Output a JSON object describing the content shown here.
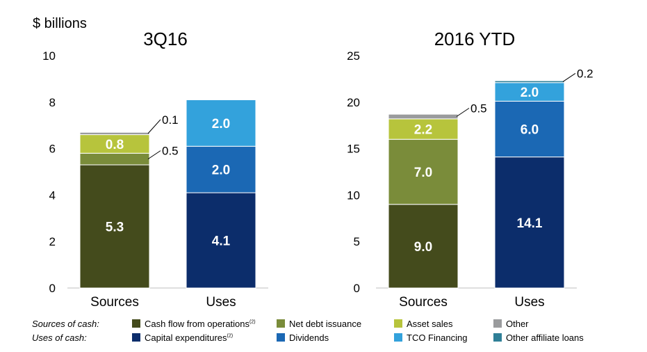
{
  "unit_label": "$ billions",
  "chart_data": [
    {
      "type": "bar",
      "stacked": true,
      "title": "3Q16",
      "categories": [
        "Sources",
        "Uses"
      ],
      "ylim": [
        0,
        10
      ],
      "yticks": [
        "0",
        "2",
        "4",
        "6",
        "8",
        "10"
      ],
      "grid": false,
      "stacks": [
        [
          {
            "series": "Cash flow from operations",
            "value": 5.3,
            "label": "5.3",
            "color": "#444b1c",
            "label_pos": "inside"
          },
          {
            "series": "Net debt issuance",
            "value": 0.5,
            "label": "0.5",
            "color": "#7a8c3a",
            "label_pos": "callout"
          },
          {
            "series": "Asset sales",
            "value": 0.8,
            "label": "0.8",
            "color": "#b7c43c",
            "label_pos": "inside"
          },
          {
            "series": "Other",
            "value": 0.1,
            "label": "0.1",
            "color": "#9a9b9d",
            "label_pos": "callout"
          }
        ],
        [
          {
            "series": "Capital expenditures",
            "value": 4.1,
            "label": "4.1",
            "color": "#0c2d6b",
            "label_pos": "inside"
          },
          {
            "series": "Dividends",
            "value": 2.0,
            "label": "2.0",
            "color": "#1b68b4",
            "label_pos": "inside"
          },
          {
            "series": "TCO Financing",
            "value": 2.0,
            "label": "2.0",
            "color": "#33a2dc",
            "label_pos": "inside"
          }
        ]
      ]
    },
    {
      "type": "bar",
      "stacked": true,
      "title": "2016 YTD",
      "categories": [
        "Sources",
        "Uses"
      ],
      "ylim": [
        0,
        25
      ],
      "yticks": [
        "0",
        "5",
        "10",
        "15",
        "20",
        "25"
      ],
      "grid": false,
      "stacks": [
        [
          {
            "series": "Cash flow from operations",
            "value": 9.0,
            "label": "9.0",
            "color": "#444b1c",
            "label_pos": "inside"
          },
          {
            "series": "Net debt issuance",
            "value": 7.0,
            "label": "7.0",
            "color": "#7a8c3a",
            "label_pos": "inside"
          },
          {
            "series": "Asset sales",
            "value": 2.2,
            "label": "2.2",
            "color": "#b7c43c",
            "label_pos": "inside"
          },
          {
            "series": "Other",
            "value": 0.5,
            "label": "0.5",
            "color": "#9a9b9d",
            "label_pos": "callout"
          }
        ],
        [
          {
            "series": "Capital expenditures",
            "value": 14.1,
            "label": "14.1",
            "color": "#0c2d6b",
            "label_pos": "inside"
          },
          {
            "series": "Dividends",
            "value": 6.0,
            "label": "6.0",
            "color": "#1b68b4",
            "label_pos": "inside"
          },
          {
            "series": "TCO Financing",
            "value": 2.0,
            "label": "2.0",
            "color": "#33a2dc",
            "label_pos": "inside"
          },
          {
            "series": "Other affiliate loans",
            "value": 0.2,
            "label": "0.2",
            "color": "#2f7f97",
            "label_pos": "callout"
          }
        ]
      ]
    }
  ],
  "legend": {
    "sources_heading": "Sources of cash:",
    "uses_heading": "Uses of cash:",
    "sources_items": [
      {
        "label": "Cash flow from operations",
        "sup": "(2)",
        "color": "#444b1c"
      },
      {
        "label": "Net debt issuance",
        "sup": "",
        "color": "#7a8c3a"
      },
      {
        "label": "Asset sales",
        "sup": "",
        "color": "#b7c43c"
      },
      {
        "label": "Other",
        "sup": "",
        "color": "#9a9b9d"
      }
    ],
    "uses_items": [
      {
        "label": "Capital expenditures",
        "sup": "(2)",
        "color": "#0c2d6b"
      },
      {
        "label": "Dividends",
        "sup": "",
        "color": "#1b68b4"
      },
      {
        "label": "TCO Financing",
        "sup": "",
        "color": "#33a2dc"
      },
      {
        "label": "Other affiliate loans",
        "sup": "",
        "color": "#2f7f97"
      }
    ]
  }
}
